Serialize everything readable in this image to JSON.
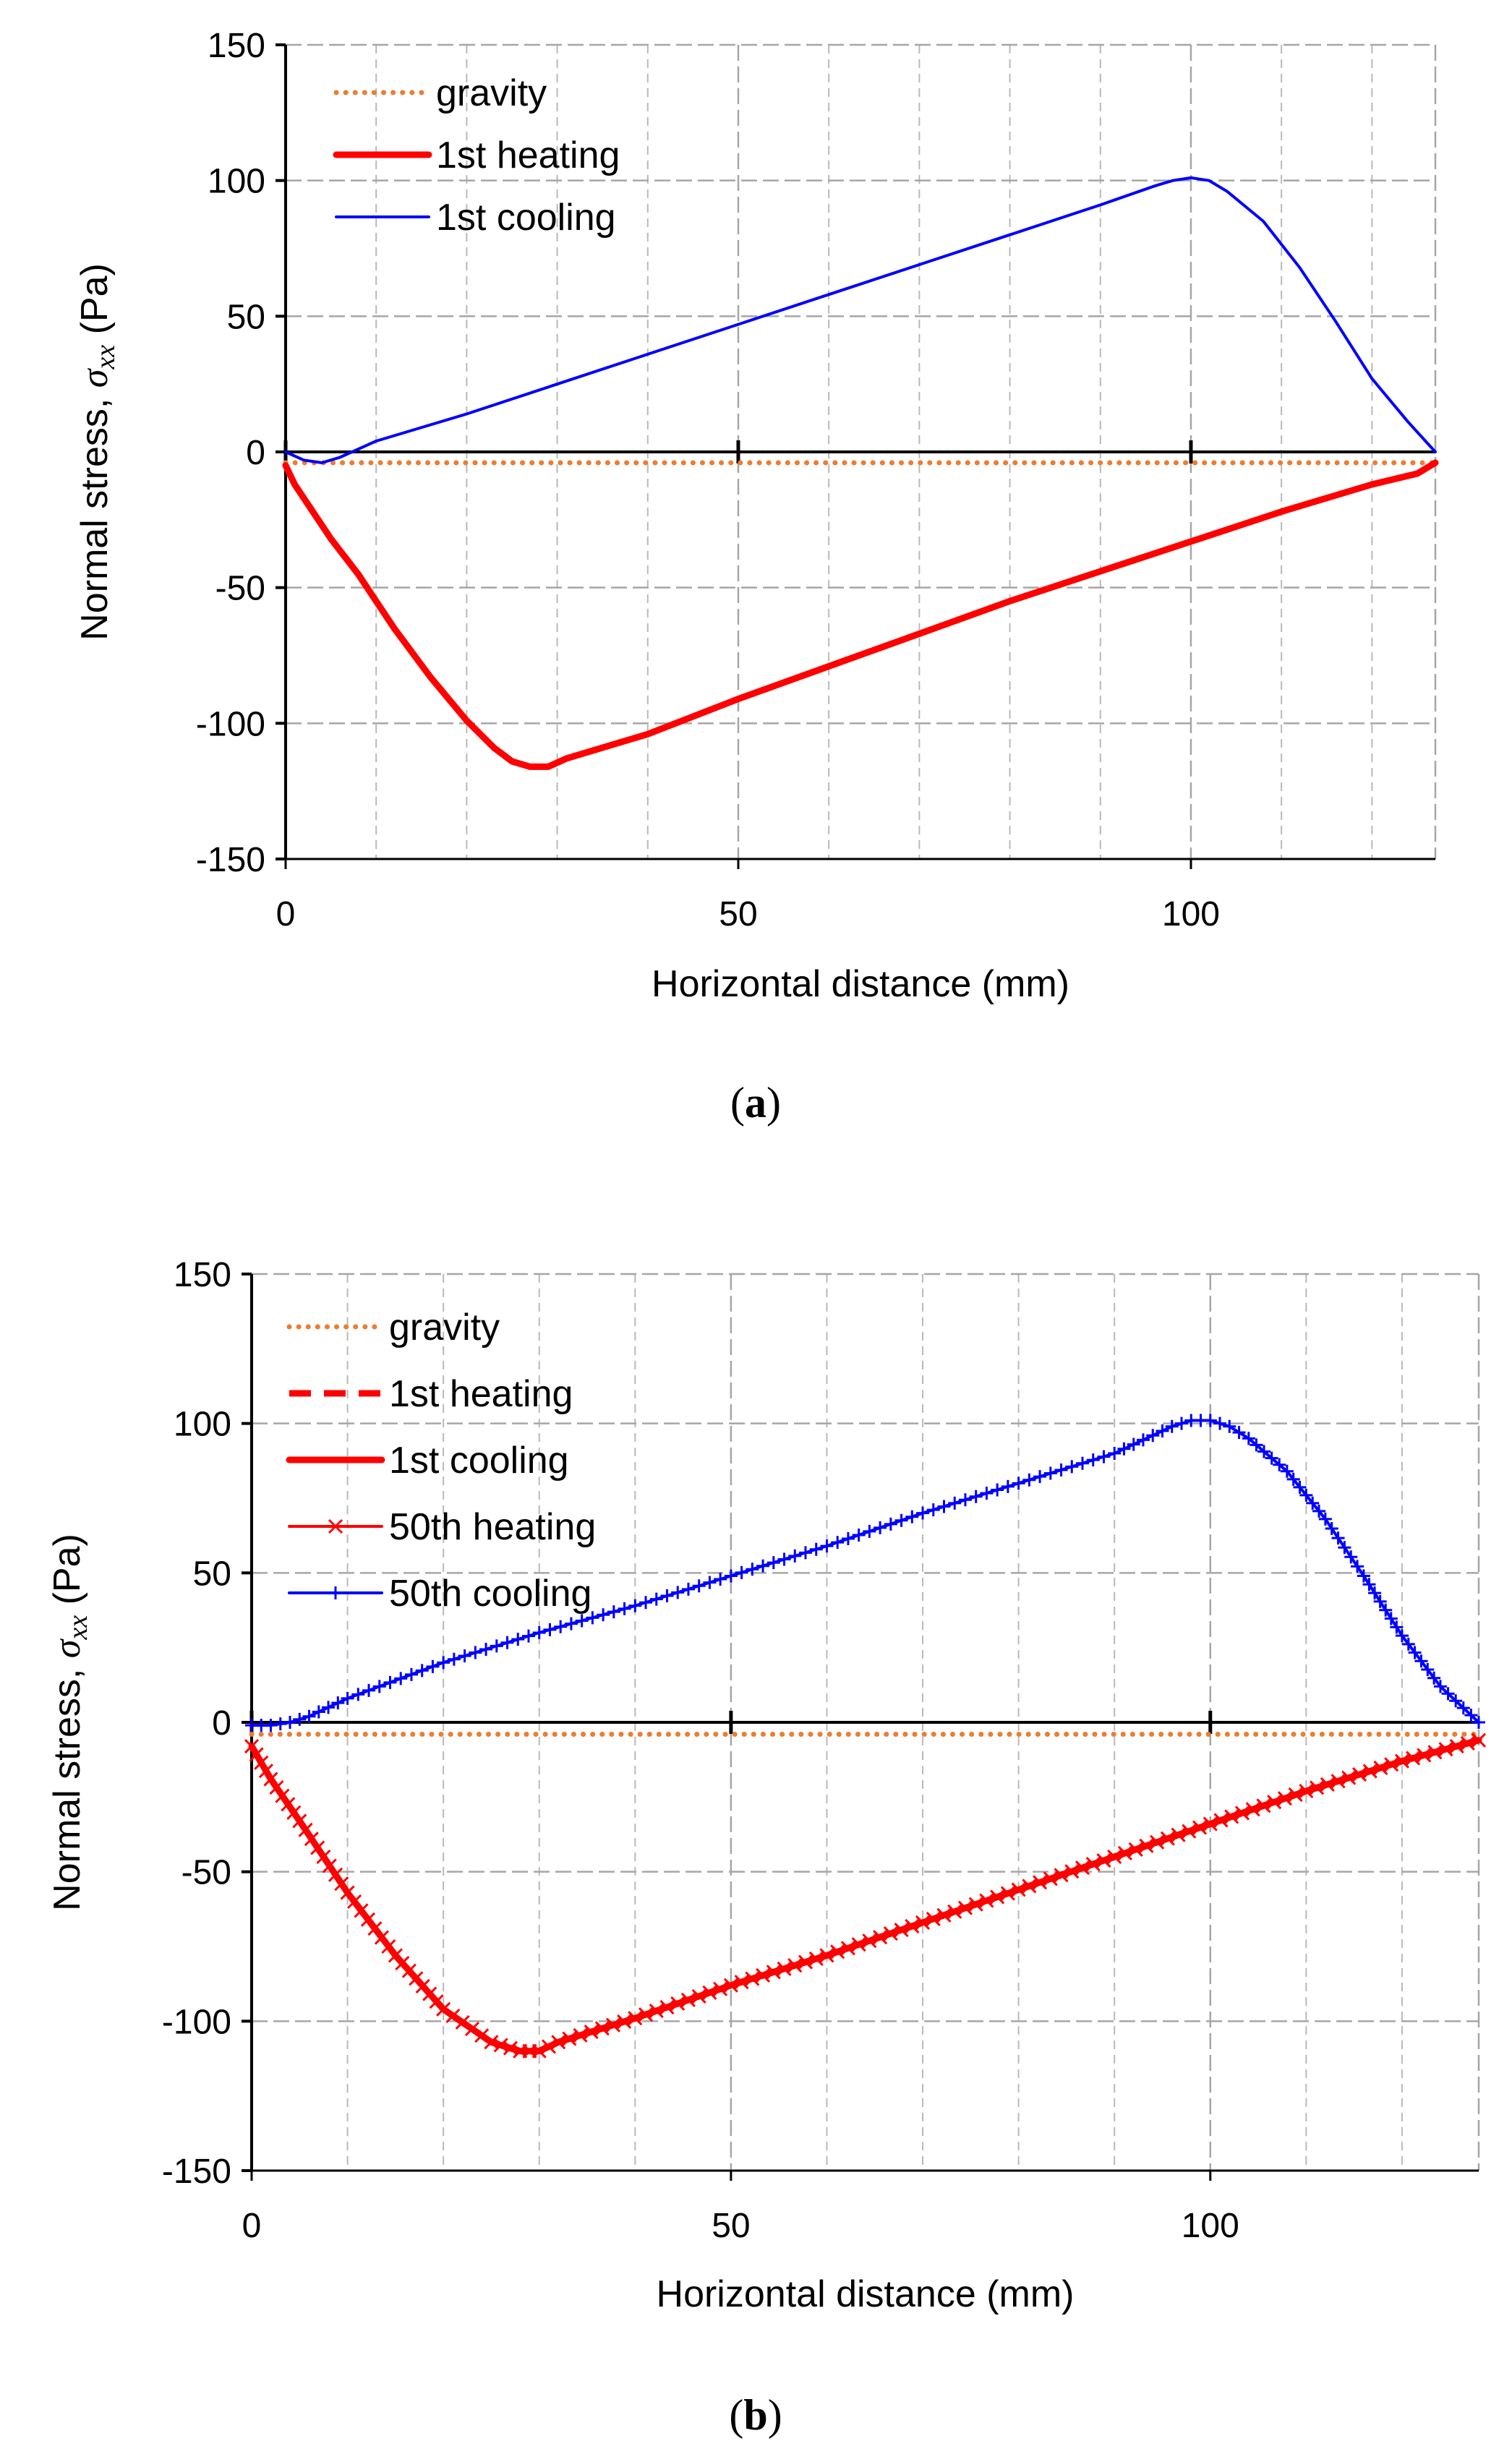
{
  "chart_data": [
    {
      "type": "line",
      "panel_label": "(a)",
      "panel_letter": "a",
      "xlabel": "Horizontal distance (mm)",
      "ylabel_prefix": "Normal stress, ",
      "ylabel_symbol": "σ",
      "ylabel_sub": "xx",
      "ylabel_suffix": " (Pa)",
      "xlim": [
        0,
        127
      ],
      "ylim": [
        -150,
        150
      ],
      "xticks": [
        0,
        50,
        100
      ],
      "yticks": [
        150,
        100,
        50,
        0,
        -50,
        -100,
        -150
      ],
      "grid": true,
      "legend_position": "top-left",
      "series": [
        {
          "name": "gravity",
          "color": "#ED7D31",
          "style": "dotted",
          "marker": "none",
          "x": [
            0,
            127
          ],
          "y": [
            -4,
            -4
          ]
        },
        {
          "name": "1st heating",
          "color": "#FF0000",
          "style": "solid-thick",
          "marker": "none",
          "x": [
            0,
            1,
            3,
            5,
            8,
            12,
            16,
            20,
            23,
            25,
            27,
            29,
            31,
            40,
            50,
            60,
            70,
            80,
            90,
            100,
            110,
            120,
            125,
            127
          ],
          "y": [
            -5,
            -12,
            -22,
            -32,
            -45,
            -65,
            -83,
            -99,
            -109,
            -114,
            -116,
            -116,
            -113,
            -104,
            -91,
            -79,
            -67,
            -55,
            -44,
            -33,
            -22,
            -12,
            -8,
            -4
          ]
        },
        {
          "name": "1st cooling",
          "color": "#0000FF",
          "style": "solid",
          "marker": "none",
          "x": [
            0,
            2,
            4,
            6,
            10,
            20,
            30,
            40,
            50,
            60,
            70,
            80,
            90,
            96,
            98,
            100,
            102,
            104,
            108,
            112,
            116,
            120,
            124,
            127
          ],
          "y": [
            0,
            -3,
            -4,
            -2,
            4,
            14,
            25,
            36,
            47,
            58,
            69,
            80,
            91,
            98,
            100,
            101,
            100,
            96,
            85,
            68,
            48,
            27,
            11,
            0
          ]
        }
      ]
    },
    {
      "type": "line",
      "panel_label": "(b)",
      "panel_letter": "b",
      "xlabel": "Horizontal distance (mm)",
      "ylabel_prefix": "Normal stress, ",
      "ylabel_symbol": "σ",
      "ylabel_sub": "xx",
      "ylabel_suffix": " (Pa)",
      "xlim": [
        0,
        128
      ],
      "ylim": [
        -150,
        150
      ],
      "xticks": [
        0,
        50,
        100
      ],
      "yticks": [
        150,
        100,
        50,
        0,
        -50,
        -100,
        -150
      ],
      "grid": true,
      "legend_position": "top-left",
      "series": [
        {
          "name": "gravity",
          "color": "#ED7D31",
          "style": "dotted",
          "marker": "none",
          "x": [
            0,
            128
          ],
          "y": [
            -4,
            -4
          ]
        },
        {
          "name": "1st heating",
          "color": "#FF0000",
          "style": "dashed",
          "marker": "none",
          "x": [
            0,
            2,
            5,
            10,
            15,
            20,
            25,
            28,
            30,
            32,
            40,
            50,
            60,
            70,
            80,
            90,
            100,
            110,
            120,
            128
          ],
          "y": [
            -8,
            -19,
            -33,
            -57,
            -78,
            -96,
            -107,
            -110,
            -110,
            -107,
            -99,
            -88,
            -78,
            -67,
            -56,
            -45,
            -34,
            -23,
            -13,
            -6
          ]
        },
        {
          "name": "1st cooling",
          "color": "#FF0000",
          "style": "solid-thick",
          "marker": "none",
          "x": [
            0,
            2,
            5,
            10,
            15,
            20,
            25,
            28,
            30,
            32,
            40,
            50,
            60,
            70,
            80,
            90,
            100,
            110,
            120,
            128
          ],
          "y": [
            -8,
            -19,
            -33,
            -57,
            -78,
            -96,
            -107,
            -110,
            -110,
            -107,
            -99,
            -88,
            -78,
            -67,
            -56,
            -45,
            -34,
            -23,
            -13,
            -6
          ]
        },
        {
          "name": "50th heating",
          "color": "#FF0000",
          "style": "solid",
          "marker": "x",
          "x": [
            0,
            2,
            5,
            10,
            15,
            20,
            25,
            28,
            30,
            32,
            40,
            50,
            60,
            70,
            80,
            90,
            100,
            110,
            120,
            128
          ],
          "y": [
            -8,
            -19,
            -33,
            -57,
            -78,
            -96,
            -107,
            -110,
            -110,
            -107,
            -99,
            -88,
            -78,
            -67,
            -56,
            -45,
            -34,
            -23,
            -13,
            -6
          ]
        },
        {
          "name": "50th cooling",
          "color": "#0000FF",
          "style": "solid",
          "marker": "plus",
          "x": [
            0,
            2,
            4,
            6,
            10,
            20,
            30,
            40,
            50,
            60,
            70,
            80,
            90,
            96,
            98,
            100,
            102,
            104,
            108,
            112,
            116,
            120,
            124,
            128
          ],
          "y": [
            -1,
            -1,
            0,
            2,
            8,
            20,
            30,
            39,
            49,
            59,
            70,
            80,
            90,
            99,
            101,
            101,
            99,
            95,
            84,
            68,
            49,
            29,
            12,
            0
          ]
        }
      ]
    }
  ]
}
